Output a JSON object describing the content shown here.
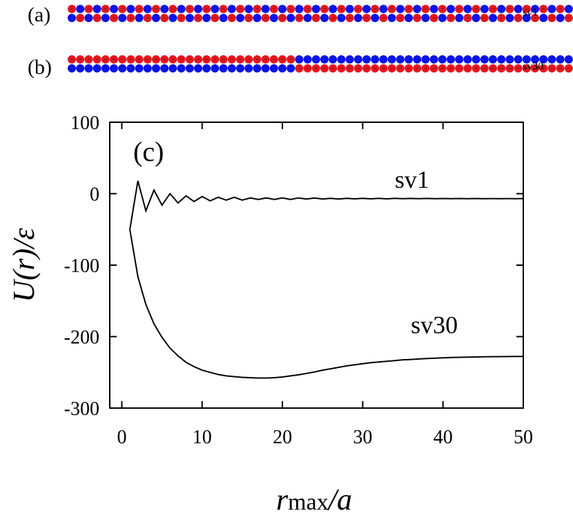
{
  "panels": {
    "a": {
      "label": "(a)",
      "chain_label": "sv1"
    },
    "b": {
      "label": "(b)",
      "chain_label": "sv30"
    },
    "c": {
      "label": "(c)"
    }
  },
  "colors": {
    "red": "#e8141c",
    "blue": "#0a14e6",
    "particle_mark": "#333333",
    "line": "#000000"
  },
  "chains": {
    "sv1": {
      "beads_per_row": 60,
      "pattern": "alternating",
      "top_row_starts_with": "red",
      "bottom_row_starts_with": "blue"
    },
    "sv30": {
      "beads_per_row": 60,
      "pattern": "blocks_of_30",
      "top_row": [
        "red",
        "blue"
      ],
      "bottom_row": [
        "blue",
        "red"
      ]
    }
  },
  "chart_data": {
    "type": "line",
    "xlabel": "rmax/a",
    "xlabel_parts": {
      "main": "r",
      "sub": "max",
      "tail": "/a"
    },
    "ylabel": "U(r)/ε",
    "ylabel_parts": {
      "prefix": "U(",
      "var": "r",
      "suffix": ")/ε"
    },
    "xlim": [
      -1.5,
      50
    ],
    "ylim": [
      -300,
      100
    ],
    "x_ticks": [
      0,
      10,
      20,
      30,
      40,
      50
    ],
    "x_tick_labels": [
      "0",
      "10",
      "20",
      "30",
      "40",
      "50"
    ],
    "y_ticks": [
      -300,
      -200,
      -100,
      0,
      100
    ],
    "y_tick_labels": [
      "-300",
      "-200",
      "-100",
      "0",
      "100"
    ],
    "grid": false,
    "series": [
      {
        "name": "sv1",
        "x": [
          1,
          2,
          3,
          4,
          5,
          6,
          7,
          8,
          9,
          10,
          11,
          12,
          13,
          14,
          15,
          16,
          17,
          18,
          19,
          20,
          21,
          22,
          23,
          24,
          25,
          26,
          27,
          28,
          29,
          30,
          31,
          32,
          33,
          34,
          35,
          36,
          37,
          38,
          39,
          40,
          41,
          42,
          43,
          44,
          45,
          46,
          47,
          48,
          49,
          50
        ],
        "y": [
          -50,
          18,
          -24,
          5,
          -16,
          0,
          -13,
          -3,
          -11,
          -4,
          -10,
          -5,
          -9,
          -5,
          -9,
          -6,
          -8,
          -6,
          -8,
          -6,
          -8,
          -6,
          -7.5,
          -6,
          -7.5,
          -6.5,
          -7.5,
          -6.5,
          -7.2,
          -6.5,
          -7.2,
          -6.6,
          -7.2,
          -6.6,
          -7,
          -6.7,
          -7,
          -6.7,
          -7,
          -6.8,
          -7,
          -6.8,
          -7,
          -6.8,
          -7,
          -6.9,
          -7,
          -6.9,
          -7,
          -6.9
        ]
      },
      {
        "name": "sv30",
        "x": [
          1,
          2,
          3,
          4,
          5,
          6,
          7,
          8,
          9,
          10,
          11,
          12,
          13,
          14,
          15,
          16,
          17,
          18,
          19,
          20,
          21,
          22,
          23,
          24,
          25,
          26,
          27,
          28,
          29,
          30,
          31,
          32,
          33,
          34,
          35,
          36,
          37,
          38,
          39,
          40,
          41,
          42,
          43,
          44,
          45,
          46,
          47,
          48,
          49,
          50
        ],
        "y": [
          -50,
          -116,
          -155,
          -182,
          -201,
          -216,
          -227,
          -236,
          -242,
          -247,
          -250,
          -253,
          -255,
          -256,
          -257,
          -257.5,
          -258,
          -258,
          -257.5,
          -256.5,
          -255,
          -253.5,
          -251.5,
          -249.5,
          -247,
          -245,
          -243,
          -241,
          -239.5,
          -238,
          -236.5,
          -235.5,
          -234.5,
          -233.5,
          -232.5,
          -232,
          -231.3,
          -230.7,
          -230.2,
          -229.7,
          -229.3,
          -229,
          -228.7,
          -228.5,
          -228.3,
          -228.1,
          -228,
          -227.9,
          -227.8,
          -227.7
        ]
      }
    ],
    "annotations": [
      {
        "text": "sv1",
        "x": 34,
        "y": 8
      },
      {
        "text": "sv30",
        "x": 36,
        "y": -195
      }
    ]
  }
}
